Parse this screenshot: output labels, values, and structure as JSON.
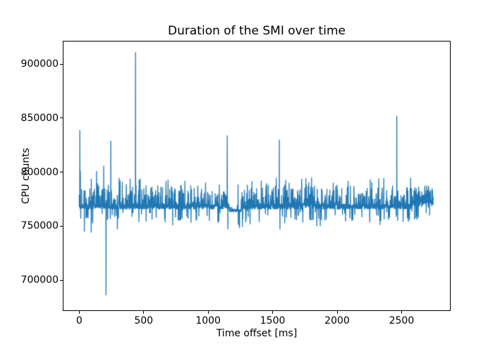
{
  "figure": {
    "background": "#ffffff",
    "text_color": "#000000"
  },
  "chart_data": {
    "type": "line",
    "title": "Duration of the SMI over time",
    "xlabel": "Time offset [ms]",
    "ylabel": "CPU counts",
    "line_color": "#1f77b4",
    "grid": false,
    "legend_position": "none",
    "xlim": [
      -122,
      2875
    ],
    "ylim": [
      672000,
      921000
    ],
    "xticks": [
      0,
      500,
      1000,
      1500,
      2000,
      2500
    ],
    "yticks": [
      700000,
      750000,
      800000,
      850000,
      900000
    ],
    "x_start": 0,
    "x_end": 2745,
    "sample_step_ms": 1,
    "y_min_observed": 686000,
    "y_max_observed": 911000,
    "baseline": {
      "mean": 768000,
      "jitter": 2600
    },
    "noise": {
      "seed": 1337,
      "up_prob": 0.32,
      "up_max": 19000,
      "down_prob": 0.05,
      "down_min": 4000,
      "down_max": 13000,
      "tall_prob": 0.012,
      "tall_base": 787000,
      "tall_extra": 8000
    },
    "segments": [
      {
        "from": 1165,
        "to": 1255,
        "mean": 764500,
        "jitter": 1500,
        "up_prob": 0.05,
        "up_max": 5000
      },
      {
        "from": 1735,
        "to": 1830,
        "mean": 769000,
        "jitter": 2600,
        "up_prob": 0.55,
        "up_max": 24000
      },
      {
        "from": 2585,
        "to": 2745,
        "mean": 771000,
        "jitter": 2600,
        "up_prob": 0.75,
        "up_max": 16000
      }
    ],
    "spikes": [
      {
        "x": 5,
        "y": 839000
      },
      {
        "x": 9,
        "y": 801000
      },
      {
        "x": 40,
        "y": 745000
      },
      {
        "x": 93,
        "y": 744000
      },
      {
        "x": 135,
        "y": 801000
      },
      {
        "x": 190,
        "y": 806000
      },
      {
        "x": 208,
        "y": 686000
      },
      {
        "x": 245,
        "y": 829000
      },
      {
        "x": 296,
        "y": 747000
      },
      {
        "x": 437,
        "y": 911000
      },
      {
        "x": 565,
        "y": 756000
      },
      {
        "x": 689,
        "y": 793000
      },
      {
        "x": 820,
        "y": 792000
      },
      {
        "x": 907,
        "y": 755000
      },
      {
        "x": 1009,
        "y": 755000
      },
      {
        "x": 1148,
        "y": 834000
      },
      {
        "x": 1153,
        "y": 747000
      },
      {
        "x": 1552,
        "y": 830000
      },
      {
        "x": 1557,
        "y": 747000
      },
      {
        "x": 1802,
        "y": 795000
      },
      {
        "x": 2463,
        "y": 852000
      },
      {
        "x": 2512,
        "y": 754000
      },
      {
        "x": 2553,
        "y": 754000
      },
      {
        "x": 2630,
        "y": 758000
      }
    ]
  }
}
